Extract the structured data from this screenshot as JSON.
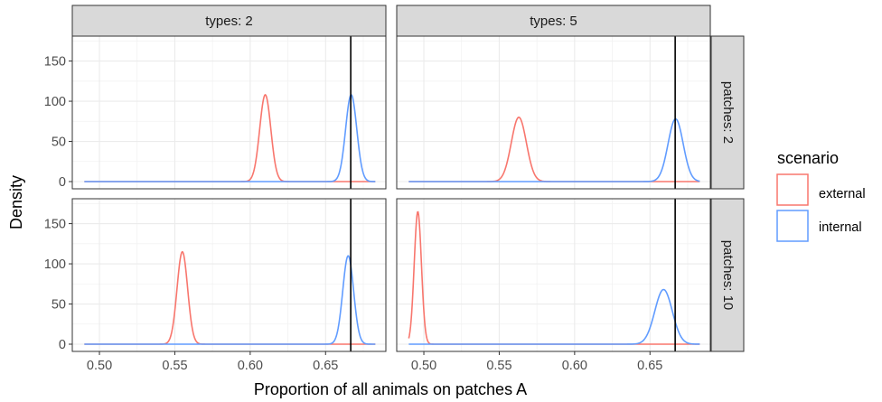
{
  "chart_data": {
    "type": "line",
    "xlabel": "Proportion of all animals on patches A",
    "ylabel": "Density",
    "xlim": [
      0.482,
      0.69
    ],
    "ylim": [
      -9,
      181
    ],
    "x_ticks": [
      0.5,
      0.55,
      0.6,
      0.65
    ],
    "x_tick_labels": [
      "0.50",
      "0.55",
      "0.60",
      "0.65"
    ],
    "y_ticks": [
      0,
      50,
      100,
      150
    ],
    "y_tick_labels": [
      "0",
      "50",
      "100",
      "150"
    ],
    "grid": true,
    "reference_line_x": 0.6667,
    "col_facets": [
      "types: 2",
      "types: 5"
    ],
    "row_facets": [
      "patches: 2",
      "patches: 10"
    ],
    "legend": {
      "title": "scenario",
      "position": "right",
      "entries": [
        {
          "name": "external",
          "color": "#F8766D"
        },
        {
          "name": "internal",
          "color": "#619CFF"
        }
      ]
    },
    "x_range_all": [
      0.49,
      0.683
    ],
    "panels": [
      {
        "row": 0,
        "col": 0,
        "series": [
          {
            "name": "external",
            "mean": 0.61,
            "sd": 0.0037,
            "peak": 108
          },
          {
            "name": "internal",
            "mean": 0.667,
            "sd": 0.0037,
            "peak": 108
          }
        ]
      },
      {
        "row": 0,
        "col": 1,
        "series": [
          {
            "name": "external",
            "mean": 0.563,
            "sd": 0.005,
            "peak": 80
          },
          {
            "name": "internal",
            "mean": 0.667,
            "sd": 0.005,
            "peak": 78
          }
        ]
      },
      {
        "row": 1,
        "col": 0,
        "series": [
          {
            "name": "external",
            "mean": 0.555,
            "sd": 0.0035,
            "peak": 115
          },
          {
            "name": "internal",
            "mean": 0.665,
            "sd": 0.0036,
            "peak": 110
          }
        ]
      },
      {
        "row": 1,
        "col": 1,
        "series": [
          {
            "name": "external",
            "mean": 0.496,
            "sd": 0.0024,
            "peak": 165
          },
          {
            "name": "internal",
            "mean": 0.659,
            "sd": 0.0058,
            "peak": 68
          }
        ]
      }
    ]
  }
}
